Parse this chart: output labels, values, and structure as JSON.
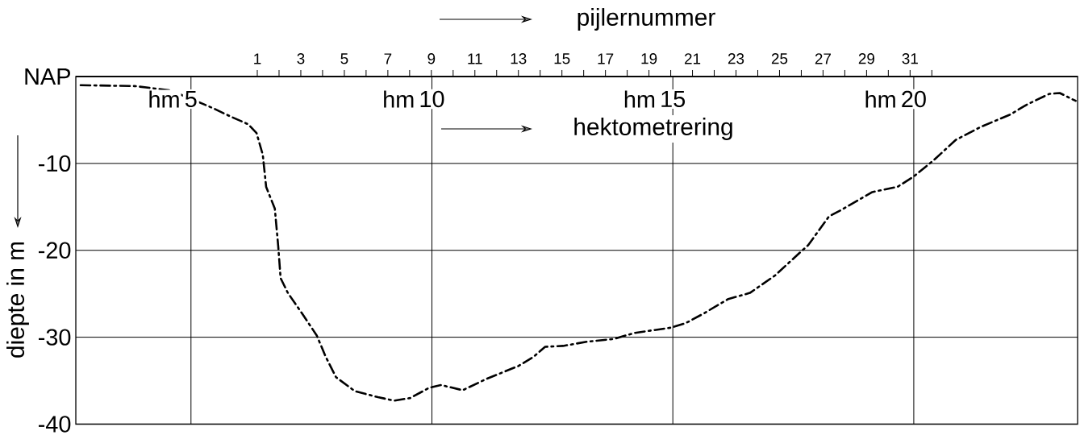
{
  "chart_data": {
    "type": "line",
    "xlabel": "hektometrering",
    "x2label": "pijlernummer",
    "ylabel": "diepte in m",
    "x": [
      2.71,
      3.83,
      4.58,
      5.44,
      5.82,
      6.19,
      6.36,
      6.49,
      6.56,
      6.74,
      6.81,
      6.86,
      7.01,
      7.31,
      7.61,
      7.8,
      8.01,
      8.4,
      8.88,
      9.22,
      9.55,
      9.95,
      10.19,
      10.64,
      11.13,
      11.8,
      12.1,
      12.35,
      12.72,
      13.24,
      13.77,
      14.21,
      14.96,
      15.26,
      15.63,
      16.15,
      16.6,
      17.12,
      17.57,
      17.81,
      18.24,
      18.48,
      19.14,
      19.66,
      20.0,
      20.42,
      20.87,
      21.39,
      21.99,
      22.36,
      22.81,
      23.03,
      23.36
    ],
    "series": [
      {
        "color": "#000000",
        "values": [
          -1.0,
          -1.1,
          -1.6,
          -3.6,
          -4.6,
          -5.5,
          -6.5,
          -9.0,
          -12.7,
          -15.2,
          -19.5,
          -23.2,
          -24.9,
          -27.3,
          -29.8,
          -32.3,
          -34.6,
          -36.2,
          -36.9,
          -37.3,
          -37.0,
          -35.8,
          -35.5,
          -36.1,
          -34.8,
          -33.3,
          -32.3,
          -31.1,
          -31.0,
          -30.5,
          -30.2,
          -29.5,
          -28.9,
          -28.4,
          -27.3,
          -25.6,
          -24.9,
          -22.9,
          -20.6,
          -19.4,
          -16.1,
          -15.4,
          -13.3,
          -12.7,
          -11.5,
          -9.6,
          -7.3,
          -5.8,
          -4.4,
          -3.2,
          -2.0,
          -1.9,
          -2.8
        ]
      }
    ],
    "line_style": "dashdotted",
    "xlim": [
      2.61,
      23.4
    ],
    "xticks": [
      5,
      10,
      15,
      20
    ],
    "annotations": [
      "hm",
      "hm",
      "hm",
      "hm"
    ],
    "ylim": [
      -40,
      0
    ],
    "yticks": [
      {
        "value": 0,
        "label": "NAP"
      },
      -10,
      -20,
      -30,
      -40
    ],
    "x2lim": [
      -7.34,
      38.7
    ],
    "x2ticks": [
      1,
      {
        "value": 2,
        "label": null
      },
      3,
      {
        "value": 4,
        "label": null
      },
      5,
      {
        "value": 6,
        "label": null
      },
      7,
      {
        "value": 8,
        "label": null
      },
      9,
      {
        "value": 10,
        "label": null
      },
      11,
      {
        "value": 12,
        "label": null
      },
      13,
      {
        "value": 14,
        "label": null
      },
      15,
      {
        "value": 16,
        "label": null
      },
      17,
      {
        "value": 18,
        "label": null
      },
      19,
      {
        "value": 20,
        "label": null
      },
      21,
      {
        "value": 22,
        "label": null
      },
      23,
      {
        "value": 24,
        "label": null
      },
      25,
      {
        "value": 26,
        "label": null
      },
      27,
      {
        "value": 28,
        "label": null
      },
      29,
      {
        "value": 30,
        "label": null
      },
      31,
      {
        "value": 32,
        "label": null
      }
    ],
    "grid": true
  }
}
